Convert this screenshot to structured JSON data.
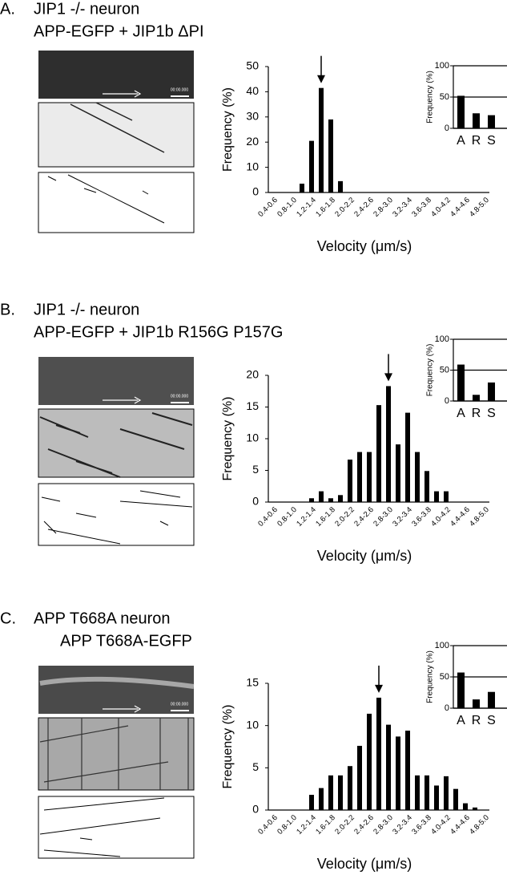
{
  "panels": [
    {
      "label": "A.",
      "title": "JIP1 -/- neuron",
      "subtitle": "APP-EGFP + JIP1b ΔPI",
      "timestamp": "00:00.000"
    },
    {
      "label": "B.",
      "title": "JIP1 -/- neuron",
      "subtitle": "APP-EGFP + JIP1b R156G P157G",
      "timestamp": "00:00.000"
    },
    {
      "label": "C.",
      "title": "APP T668A neuron",
      "subtitle": "APP T668A-EGFP",
      "timestamp": "00:00.000"
    }
  ],
  "chart_data": [
    {
      "type": "bar",
      "x_label": "Velocity (μm/s)",
      "y_label": "Frequency (%)",
      "color": "#000000",
      "categories": [
        "0.4-0.6",
        null,
        "0.8-1.0",
        null,
        "1.2-1.4",
        null,
        "1.6-1.8",
        null,
        "2.0-2.2",
        null,
        "2.4-2.6",
        null,
        "2.8-3.0",
        null,
        "3.2-3.4",
        null,
        "3.6-3.8",
        null,
        "4.0-4.2",
        null,
        "4.4-4.6",
        null,
        "4.8-5.0"
      ],
      "values": [
        0,
        0,
        0,
        3.5,
        20.5,
        41.5,
        29,
        4.5,
        0,
        0,
        0,
        0,
        0,
        0,
        0,
        0,
        0,
        0,
        0,
        0,
        0,
        0,
        0
      ],
      "ylim": [
        0,
        50
      ],
      "yticks": [
        0,
        10,
        20,
        30,
        40,
        50
      ],
      "grid": false
    },
    {
      "type": "bar",
      "y_label": "Frequency (%)",
      "color": "#000000",
      "categories": [
        "A",
        "R",
        "S"
      ],
      "values": [
        52,
        24,
        21
      ],
      "ylim": [
        0,
        100
      ],
      "yticks": [
        0,
        50,
        100
      ],
      "grid": true
    },
    {
      "type": "bar",
      "x_label": "Velocity (μm/s)",
      "y_label": "Frequency (%)",
      "color": "#000000",
      "categories": [
        "0.4-0.6",
        null,
        "0.8-1.0",
        null,
        "1.2-1.4",
        null,
        "1.6-1.8",
        null,
        "2.0-2.2",
        null,
        "2.4-2.6",
        null,
        "2.8-3.0",
        null,
        "3.2-3.4",
        null,
        "3.6-3.8",
        null,
        "4.0-4.2",
        null,
        "4.4-4.6",
        null,
        "4.8-5.0"
      ],
      "values": [
        0,
        0,
        0,
        0,
        0.6,
        1.7,
        0.6,
        1.1,
        6.7,
        7.9,
        7.9,
        15.3,
        18.3,
        9.1,
        14.1,
        7.9,
        4.9,
        1.7,
        1.7,
        0,
        0,
        0,
        0
      ],
      "ylim": [
        0,
        20
      ],
      "yticks": [
        0,
        5,
        10,
        15,
        20
      ],
      "grid": false
    },
    {
      "type": "bar",
      "y_label": "Frequency (%)",
      "color": "#000000",
      "categories": [
        "A",
        "R",
        "S"
      ],
      "values": [
        59,
        10,
        30
      ],
      "ylim": [
        0,
        100
      ],
      "yticks": [
        0,
        50,
        100
      ],
      "grid": true
    },
    {
      "type": "bar",
      "x_label": "Velocity (μm/s)",
      "y_label": "Frequency (%)",
      "color": "#000000",
      "categories": [
        "0.4-0.6",
        null,
        "0.8-1.0",
        null,
        "1.2-1.4",
        null,
        "1.6-1.8",
        null,
        "2.0-2.2",
        null,
        "2.4-2.6",
        null,
        "2.8-3.0",
        null,
        "3.2-3.4",
        null,
        "3.6-3.8",
        null,
        "4.0-4.2",
        null,
        "4.4-4.6",
        null,
        "4.8-5.0"
      ],
      "values": [
        0,
        0,
        0,
        0,
        1.8,
        2.6,
        4.1,
        4.1,
        5.2,
        7.6,
        11.4,
        13.3,
        10.1,
        8.7,
        9.4,
        4.1,
        4.1,
        2.9,
        4.0,
        2.5,
        0.8,
        0.3,
        0
      ],
      "ylim": [
        0,
        15
      ],
      "yticks": [
        0,
        5,
        10,
        15
      ],
      "grid": false
    },
    {
      "type": "bar",
      "y_label": "Frequency (%)",
      "color": "#000000",
      "categories": [
        "A",
        "R",
        "S"
      ],
      "values": [
        57,
        14,
        26
      ],
      "ylim": [
        0,
        100
      ],
      "yticks": [
        0,
        50,
        100
      ],
      "grid": true
    }
  ]
}
